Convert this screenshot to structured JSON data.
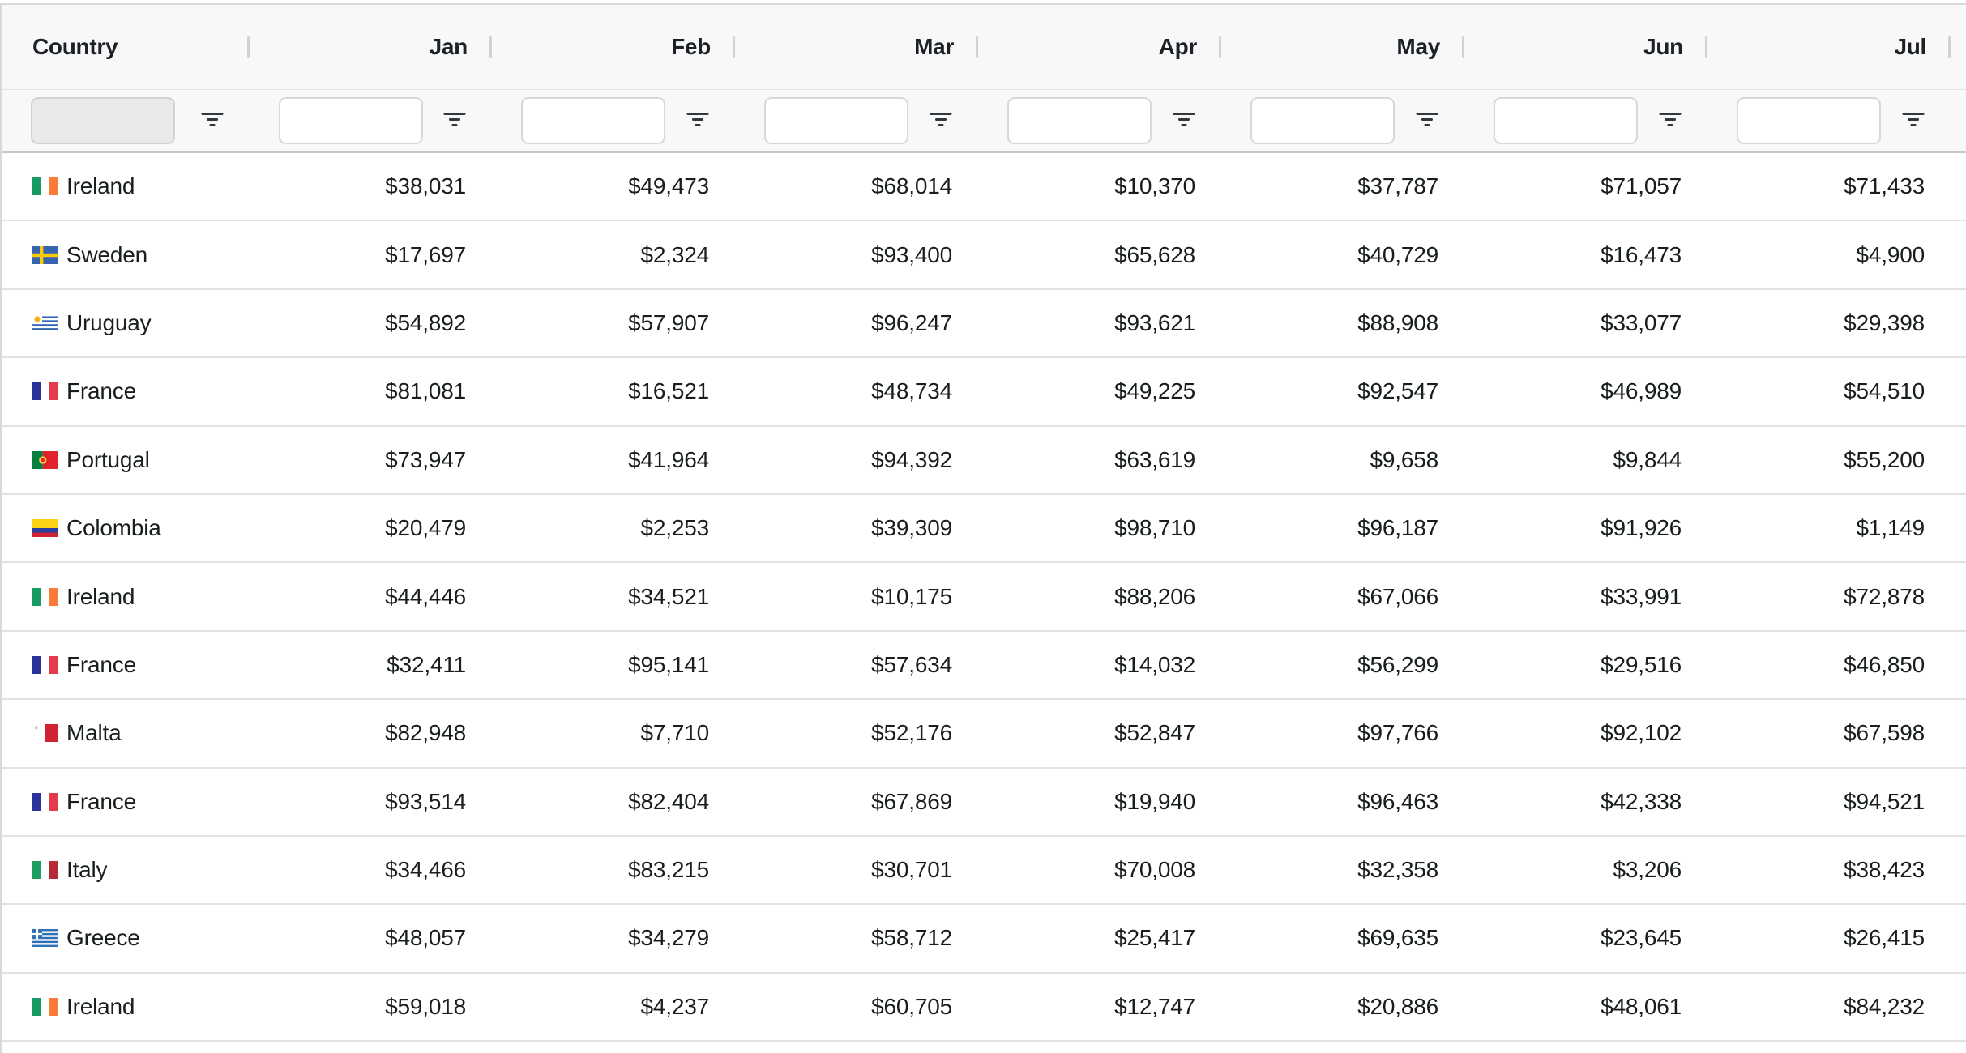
{
  "grid": {
    "columns": [
      {
        "id": "country",
        "label": "Country",
        "align": "left",
        "filter": {
          "type": "text",
          "value": "",
          "disabled": true
        }
      },
      {
        "id": "jan",
        "label": "Jan",
        "align": "right",
        "filter": {
          "type": "text",
          "value": "",
          "disabled": false
        }
      },
      {
        "id": "feb",
        "label": "Feb",
        "align": "right",
        "filter": {
          "type": "text",
          "value": "",
          "disabled": false
        }
      },
      {
        "id": "mar",
        "label": "Mar",
        "align": "right",
        "filter": {
          "type": "text",
          "value": "",
          "disabled": false
        }
      },
      {
        "id": "apr",
        "label": "Apr",
        "align": "right",
        "filter": {
          "type": "text",
          "value": "",
          "disabled": false
        }
      },
      {
        "id": "may",
        "label": "May",
        "align": "right",
        "filter": {
          "type": "text",
          "value": "",
          "disabled": false
        }
      },
      {
        "id": "jun",
        "label": "Jun",
        "align": "right",
        "filter": {
          "type": "text",
          "value": "",
          "disabled": false
        }
      },
      {
        "id": "jul",
        "label": "Jul",
        "align": "right",
        "filter": {
          "type": "text",
          "value": "",
          "disabled": false
        }
      }
    ],
    "filter_icon": "filter-funnel-icon",
    "rows": [
      {
        "country": "Ireland",
        "flag": "ireland",
        "values": [
          "$38,031",
          "$49,473",
          "$68,014",
          "$10,370",
          "$37,787",
          "$71,057",
          "$71,433"
        ]
      },
      {
        "country": "Sweden",
        "flag": "sweden",
        "values": [
          "$17,697",
          "$2,324",
          "$93,400",
          "$65,628",
          "$40,729",
          "$16,473",
          "$4,900"
        ]
      },
      {
        "country": "Uruguay",
        "flag": "uruguay",
        "values": [
          "$54,892",
          "$57,907",
          "$96,247",
          "$93,621",
          "$88,908",
          "$33,077",
          "$29,398"
        ]
      },
      {
        "country": "France",
        "flag": "france",
        "values": [
          "$81,081",
          "$16,521",
          "$48,734",
          "$49,225",
          "$92,547",
          "$46,989",
          "$54,510"
        ]
      },
      {
        "country": "Portugal",
        "flag": "portugal",
        "values": [
          "$73,947",
          "$41,964",
          "$94,392",
          "$63,619",
          "$9,658",
          "$9,844",
          "$55,200"
        ]
      },
      {
        "country": "Colombia",
        "flag": "colombia",
        "values": [
          "$20,479",
          "$2,253",
          "$39,309",
          "$98,710",
          "$96,187",
          "$91,926",
          "$1,149"
        ]
      },
      {
        "country": "Ireland",
        "flag": "ireland",
        "values": [
          "$44,446",
          "$34,521",
          "$10,175",
          "$88,206",
          "$67,066",
          "$33,991",
          "$72,878"
        ]
      },
      {
        "country": "France",
        "flag": "france",
        "values": [
          "$32,411",
          "$95,141",
          "$57,634",
          "$14,032",
          "$56,299",
          "$29,516",
          "$46,850"
        ]
      },
      {
        "country": "Malta",
        "flag": "malta",
        "values": [
          "$82,948",
          "$7,710",
          "$52,176",
          "$52,847",
          "$97,766",
          "$92,102",
          "$67,598"
        ]
      },
      {
        "country": "France",
        "flag": "france",
        "values": [
          "$93,514",
          "$82,404",
          "$67,869",
          "$19,940",
          "$96,463",
          "$42,338",
          "$94,521"
        ]
      },
      {
        "country": "Italy",
        "flag": "italy",
        "values": [
          "$34,466",
          "$83,215",
          "$30,701",
          "$70,008",
          "$32,358",
          "$3,206",
          "$38,423"
        ]
      },
      {
        "country": "Greece",
        "flag": "greece",
        "values": [
          "$48,057",
          "$34,279",
          "$58,712",
          "$25,417",
          "$69,635",
          "$23,645",
          "$26,415"
        ]
      },
      {
        "country": "Ireland",
        "flag": "ireland",
        "values": [
          "$59,018",
          "$4,237",
          "$60,705",
          "$12,747",
          "$20,886",
          "$48,061",
          "$84,232"
        ]
      }
    ],
    "colors": {
      "header_bg": "#f8f8f8",
      "row_bg": "#ffffff",
      "text": "#181d1f",
      "row_border": "#e2e2e2",
      "strong_border": "#c7c7c7",
      "outer_border": "#d9d9d9",
      "separator": "#d2d2d2",
      "input_border": "#d8d8d8",
      "disabled_input_bg": "#e9e9e9"
    }
  }
}
